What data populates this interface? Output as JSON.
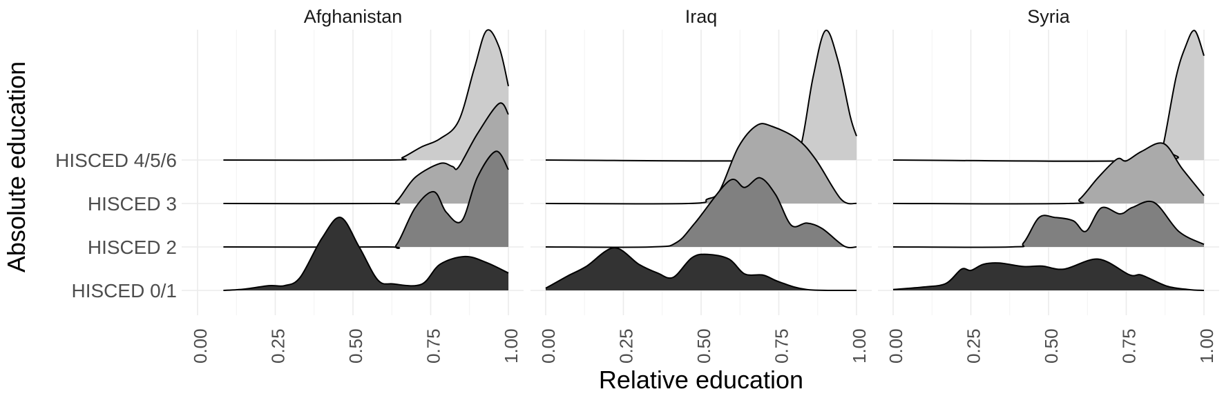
{
  "chart_data": {
    "type": "ridgeline",
    "title": "",
    "xlabel": "Relative education",
    "ylabel": "Absolute education",
    "xlim": [
      0,
      1
    ],
    "x_ticks": [
      "0.00",
      "0.25",
      "0.50",
      "0.75",
      "1.00"
    ],
    "categories": [
      "HISCED 0/1",
      "HISCED 2",
      "HISCED 3",
      "HISCED 4/5/6"
    ],
    "fill_colors": {
      "HISCED 0/1": "#333333",
      "HISCED 2": "#808080",
      "HISCED 3": "#aaaaaa",
      "HISCED 4/5/6": "#cccccc"
    },
    "grid": true,
    "legend": "none",
    "note": "Ridge heights are relative density (0 = baseline, 1 = one row spacing); values estimated from the image.",
    "panels": [
      {
        "title": "Afghanistan",
        "series": [
          {
            "name": "HISCED 0/1",
            "x": [
              0.083,
              0.15,
              0.23,
              0.28,
              0.33,
              0.4,
              0.46,
              0.52,
              0.58,
              0.63,
              0.72,
              0.78,
              0.86,
              0.93,
              1.0
            ],
            "height": [
              0,
              0.03,
              0.11,
              0.11,
              0.3,
              1.2,
              1.68,
              1.0,
              0.24,
              0.15,
              0.14,
              0.6,
              0.78,
              0.64,
              0.4
            ]
          },
          {
            "name": "HISCED 2",
            "x": [
              0.083,
              0.6,
              0.64,
              0.7,
              0.76,
              0.8,
              0.85,
              0.9,
              0.96,
              1.0
            ],
            "height": [
              0,
              0,
              0.05,
              0.9,
              1.27,
              0.8,
              0.6,
              1.6,
              2.2,
              1.78
            ]
          },
          {
            "name": "HISCED 3",
            "x": [
              0.083,
              0.6,
              0.64,
              0.7,
              0.78,
              0.82,
              0.84,
              0.9,
              0.97,
              1.0
            ],
            "height": [
              0,
              0,
              0.05,
              0.6,
              0.92,
              0.85,
              0.84,
              1.6,
              2.3,
              2.05
            ]
          },
          {
            "name": "HISCED 4/5/6",
            "x": [
              0.083,
              0.62,
              0.66,
              0.72,
              0.78,
              0.84,
              0.89,
              0.93,
              0.97,
              1.0
            ],
            "height": [
              0,
              0,
              0.06,
              0.3,
              0.49,
              0.9,
              2.1,
              2.98,
              2.6,
              1.7
            ]
          }
        ]
      },
      {
        "title": "Iraq",
        "series": [
          {
            "name": "HISCED 0/1",
            "x": [
              0.0,
              0.07,
              0.13,
              0.22,
              0.3,
              0.36,
              0.41,
              0.47,
              0.52,
              0.59,
              0.64,
              0.7,
              0.75,
              0.84,
              1.0
            ],
            "height": [
              0.05,
              0.33,
              0.55,
              0.98,
              0.6,
              0.4,
              0.3,
              0.75,
              0.83,
              0.72,
              0.38,
              0.35,
              0.2,
              0.02,
              0
            ]
          },
          {
            "name": "HISCED 2",
            "x": [
              0.0,
              0.34,
              0.42,
              0.48,
              0.59,
              0.64,
              0.69,
              0.74,
              0.79,
              0.84,
              0.89,
              0.96,
              1.0
            ],
            "height": [
              0,
              0,
              0.1,
              0.55,
              1.52,
              1.37,
              1.59,
              1.2,
              0.5,
              0.55,
              0.42,
              0.02,
              0
            ]
          },
          {
            "name": "HISCED 3",
            "x": [
              0.0,
              0.46,
              0.52,
              0.56,
              0.62,
              0.68,
              0.73,
              0.81,
              0.87,
              0.95,
              1.0
            ],
            "height": [
              0,
              0,
              0.1,
              0.3,
              1.3,
              1.8,
              1.77,
              1.48,
              1.0,
              0.1,
              0
            ]
          },
          {
            "name": "HISCED 4/5/6",
            "x": [
              0.0,
              0.78,
              0.82,
              0.86,
              0.9,
              0.94,
              0.98,
              1.0
            ],
            "height": [
              0,
              0,
              0.3,
              1.9,
              2.98,
              2.3,
              1.0,
              0.55
            ]
          }
        ]
      },
      {
        "title": "Syria",
        "series": [
          {
            "name": "HISCED 0/1",
            "x": [
              0.0,
              0.1,
              0.17,
              0.22,
              0.25,
              0.29,
              0.34,
              0.42,
              0.48,
              0.55,
              0.66,
              0.76,
              0.8,
              0.88,
              0.95,
              1.0
            ],
            "height": [
              0.02,
              0.08,
              0.16,
              0.49,
              0.46,
              0.6,
              0.63,
              0.55,
              0.56,
              0.49,
              0.72,
              0.36,
              0.35,
              0.1,
              0.02,
              0
            ]
          },
          {
            "name": "HISCED 2",
            "x": [
              0.0,
              0.38,
              0.42,
              0.47,
              0.52,
              0.58,
              0.62,
              0.67,
              0.73,
              0.77,
              0.84,
              0.92,
              1.0
            ],
            "height": [
              0,
              0,
              0.1,
              0.68,
              0.68,
              0.6,
              0.36,
              0.9,
              0.76,
              0.91,
              1.02,
              0.35,
              0.06
            ]
          },
          {
            "name": "HISCED 3",
            "x": [
              0.0,
              0.56,
              0.6,
              0.66,
              0.72,
              0.75,
              0.8,
              0.87,
              0.93,
              1.0
            ],
            "height": [
              0,
              0,
              0.1,
              0.6,
              1.02,
              0.98,
              1.2,
              1.38,
              0.8,
              0.18
            ]
          },
          {
            "name": "HISCED 4/5/6",
            "x": [
              0.0,
              0.85,
              0.87,
              0.91,
              0.94,
              0.97,
              1.0
            ],
            "height": [
              0,
              0,
              0.38,
              1.9,
              2.6,
              2.98,
              2.4
            ]
          }
        ]
      }
    ]
  },
  "labels": {
    "strip_titles": [
      "Afghanistan",
      "Iraq",
      "Syria"
    ],
    "y_axis_title": "Absolute education",
    "x_axis_title": "Relative education",
    "y_ticks": [
      "HISCED 4/5/6",
      "HISCED 3",
      "HISCED 2",
      "HISCED 0/1"
    ],
    "x_ticks": [
      "0.00",
      "0.25",
      "0.50",
      "0.75",
      "1.00"
    ]
  }
}
